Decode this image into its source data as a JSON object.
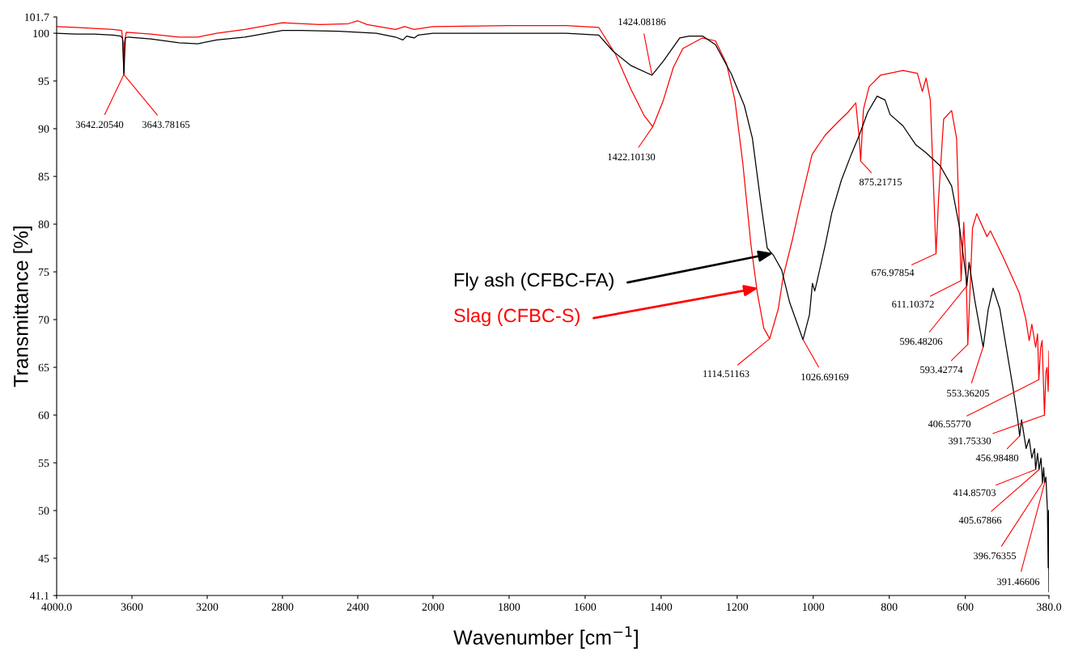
{
  "chart_data": [
    {
      "type": "line",
      "ylabel": "Transmittance [%]",
      "xlim": [
        4000,
        2000
      ],
      "xticks": [
        {
          "value": 4000,
          "label": "4000.0"
        },
        3600,
        3200,
        2800,
        2400,
        2000
      ],
      "ylim": [
        41.1,
        101.7
      ],
      "yticks": [
        41.1,
        45,
        50,
        55,
        60,
        65,
        70,
        75,
        80,
        85,
        90,
        95,
        100,
        101.7
      ],
      "grid": false,
      "legend": false,
      "marker": "none",
      "line_style": "solid",
      "series": [
        {
          "color": "#000000",
          "x": [
            4000,
            3900,
            3800,
            3700,
            3660,
            3650,
            3645,
            3642.2,
            3639,
            3635,
            3620,
            3500,
            3350,
            3250,
            3150,
            3000,
            2800,
            2700,
            2500,
            2400,
            2300,
            2200,
            2160,
            2140,
            2100,
            2080,
            2000
          ],
          "values": [
            100.0,
            99.9,
            99.9,
            99.8,
            99.7,
            99.5,
            97.0,
            95.7,
            97.5,
            99.5,
            99.6,
            99.4,
            99.0,
            98.9,
            99.3,
            99.6,
            100.3,
            100.3,
            100.2,
            100.1,
            100.0,
            99.6,
            99.3,
            99.7,
            99.5,
            99.8,
            100.0
          ]
        },
        {
          "color": "#ff0000",
          "x": [
            4000,
            3900,
            3800,
            3700,
            3655,
            3647,
            3643.8,
            3640,
            3630,
            3500,
            3350,
            3250,
            3150,
            3000,
            2800,
            2600,
            2450,
            2400,
            2350,
            2200,
            2150,
            2100,
            2000
          ],
          "values": [
            100.7,
            100.6,
            100.5,
            100.4,
            100.3,
            99.0,
            95.7,
            99.0,
            100.1,
            99.9,
            99.6,
            99.6,
            100.0,
            100.4,
            101.1,
            100.9,
            101.0,
            101.3,
            100.9,
            100.4,
            100.7,
            100.4,
            100.7
          ]
        }
      ],
      "annotations": [
        {
          "text": "3642.20540",
          "x": 3642.2054,
          "y": 95.7
        },
        {
          "text": "3643.78165",
          "x": 3643.78165,
          "y": 95.7
        }
      ]
    },
    {
      "type": "line",
      "xlabel": "Wavenumber [cm$^{−1}$]",
      "xlim": [
        2000,
        380
      ],
      "xticks": [
        1800,
        1600,
        1400,
        1200,
        1000,
        800,
        600,
        {
          "value": 380,
          "label": "380.0"
        }
      ],
      "ylim": [
        41.1,
        101.7
      ],
      "tick_labels": "x",
      "grid": false,
      "legend": false,
      "marker": "none",
      "line_style": "solid",
      "series": [
        {
          "name": "Fly ash (CFBC-FA)",
          "color": "#000000",
          "x": [
            2000,
            1800,
            1650,
            1564,
            1526,
            1479,
            1424,
            1394,
            1351,
            1326,
            1291,
            1257,
            1215,
            1181,
            1160,
            1138,
            1121,
            1104,
            1083,
            1062,
            1027,
            1010,
            1002,
            996,
            990,
            968,
            951,
            926,
            900,
            879,
            857,
            832,
            811,
            798,
            764,
            730,
            704,
            666,
            636,
            615,
            598,
            596,
            590,
            575,
            553,
            540,
            527,
            509,
            474,
            462,
            457,
            452,
            440,
            432,
            425,
            418,
            415,
            410,
            406,
            401,
            397,
            394,
            391.5,
            388,
            384,
            382,
            381,
            380
          ],
          "values": [
            100.0,
            100.0,
            100.0,
            99.8,
            98.1,
            96.6,
            95.6,
            97.1,
            99.5,
            99.7,
            99.7,
            98.8,
            95.7,
            92.4,
            89.0,
            82.3,
            77.5,
            76.7,
            75.2,
            71.8,
            67.9,
            70.5,
            73.8,
            73.0,
            74.0,
            77.9,
            81.2,
            84.6,
            87.3,
            89.3,
            91.7,
            93.4,
            93.0,
            91.5,
            90.3,
            88.3,
            87.5,
            86.1,
            84.0,
            79.6,
            74.5,
            73.5,
            76.0,
            72.0,
            67.1,
            71.0,
            73.3,
            71.1,
            62.7,
            59.5,
            57.8,
            59.5,
            56.5,
            57.5,
            55.5,
            56.5,
            54.3,
            56.0,
            54.3,
            55.5,
            52.9,
            54.5,
            52.9,
            53.5,
            50.0,
            44.0,
            50.0,
            41.5
          ]
        },
        {
          "name": "Slag (CFBC-S)",
          "color": "#ff0000",
          "x": [
            2000,
            1800,
            1650,
            1564,
            1520,
            1479,
            1445,
            1422,
            1394,
            1368,
            1343,
            1292,
            1257,
            1228,
            1206,
            1185,
            1164,
            1147,
            1130,
            1114.5,
            1092,
            1079,
            1054,
            1037,
            1003,
            969,
            935,
            909,
            888,
            879,
            875.2,
            868,
            853,
            823,
            764,
            726,
            713,
            703,
            692,
            677,
            670,
            657,
            636,
            623,
            611,
            604,
            598,
            593.4,
            581,
            570,
            543,
            534,
            500,
            458,
            441,
            432,
            425,
            415,
            410,
            406.6,
            402,
            398,
            391.8,
            388,
            385,
            382,
            380
          ],
          "values": [
            100.7,
            100.8,
            100.8,
            100.6,
            97.8,
            94.1,
            91.4,
            90.2,
            93.0,
            96.4,
            98.4,
            99.5,
            99.2,
            96.8,
            93.0,
            86.3,
            77.9,
            72.8,
            69.1,
            68.0,
            71.1,
            74.5,
            78.5,
            81.6,
            87.3,
            89.3,
            90.7,
            91.7,
            92.7,
            89.0,
            86.6,
            92.0,
            94.4,
            95.6,
            96.1,
            95.8,
            93.9,
            95.3,
            93.0,
            76.9,
            82.9,
            91.0,
            91.9,
            89.0,
            74.1,
            80.2,
            75.0,
            67.4,
            79.6,
            81.1,
            78.7,
            79.3,
            76.5,
            72.8,
            70.1,
            67.8,
            69.5,
            67.1,
            68.5,
            63.7,
            67.0,
            67.8,
            60.0,
            64.5,
            65.0,
            62.5,
            66.7
          ]
        }
      ],
      "annotations": [
        {
          "text": "1424.08186",
          "x": 1424.08186,
          "y": 95.6
        },
        {
          "text": "1422.10130",
          "x": 1422.1013,
          "y": 90.2
        },
        {
          "text": "875.21715",
          "x": 875.21715,
          "y": 86.6
        },
        {
          "text": "676.97854",
          "x": 676.97854,
          "y": 76.9
        },
        {
          "text": "611.10372",
          "x": 611.10372,
          "y": 74.1
        },
        {
          "text": "596.48206",
          "x": 596.48206,
          "y": 73.5
        },
        {
          "text": "593.42774",
          "x": 593.42774,
          "y": 67.4
        },
        {
          "text": "553.36205",
          "x": 553.36205,
          "y": 67.1
        },
        {
          "text": "406.55770",
          "x": 406.5577,
          "y": 63.7
        },
        {
          "text": "391.75330",
          "x": 391.7533,
          "y": 60.0
        },
        {
          "text": "456.98480",
          "x": 456.9848,
          "y": 57.8
        },
        {
          "text": "414.85703",
          "x": 414.85703,
          "y": 54.3
        },
        {
          "text": "405.67866",
          "x": 405.67866,
          "y": 54.3
        },
        {
          "text": "396.76355",
          "x": 396.76355,
          "y": 52.9
        },
        {
          "text": "391.46606",
          "x": 391.46606,
          "y": 52.9
        },
        {
          "text": "1114.51163",
          "x": 1114.51163,
          "y": 68.0
        },
        {
          "text": "1026.69169",
          "x": 1026.69169,
          "y": 67.9
        }
      ]
    }
  ]
}
